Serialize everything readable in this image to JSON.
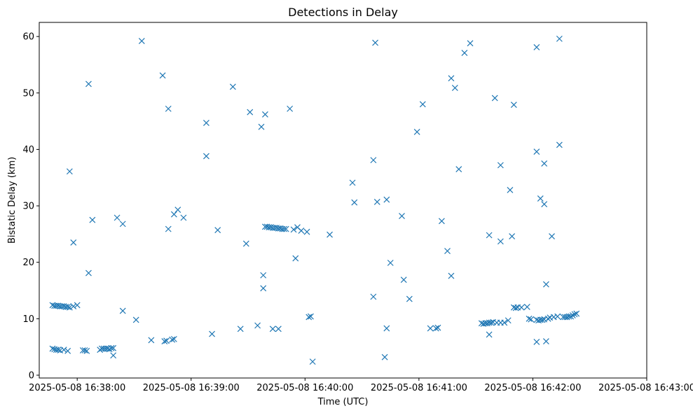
{
  "chart_data": {
    "type": "scatter",
    "title": "Detections in Delay",
    "xlabel": "Time (UTC)",
    "ylabel": "Bistatic Delay (km)",
    "x_unit": "time",
    "xlim": [
      "2025-05-08 16:37:40",
      "2025-05-08 16:43:00"
    ],
    "ylim": [
      -0.5,
      62.5
    ],
    "x_ticks": [
      {
        "t": "2025-05-08 16:38:00",
        "label": "2025-05-08 16:38:00"
      },
      {
        "t": "2025-05-08 16:39:00",
        "label": "2025-05-08 16:39:00"
      },
      {
        "t": "2025-05-08 16:40:00",
        "label": "2025-05-08 16:40:00"
      },
      {
        "t": "2025-05-08 16:41:00",
        "label": "2025-05-08 16:41:00"
      },
      {
        "t": "2025-05-08 16:42:00",
        "label": "2025-05-08 16:42:00"
      },
      {
        "t": "2025-05-08 16:43:00",
        "label": "2025-05-08 16:43:00"
      }
    ],
    "y_ticks": [
      0,
      10,
      20,
      30,
      40,
      50,
      60
    ],
    "grid": false,
    "legend": false,
    "marker": "x",
    "color": "#1f77b4",
    "series": [
      {
        "points": [
          [
            "2025-05-08 16:37:47",
            12.4
          ],
          [
            "2025-05-08 16:37:48",
            12.3
          ],
          [
            "2025-05-08 16:37:49",
            12.3
          ],
          [
            "2025-05-08 16:37:50",
            12.3
          ],
          [
            "2025-05-08 16:37:51",
            12.2
          ],
          [
            "2025-05-08 16:37:52",
            12.2
          ],
          [
            "2025-05-08 16:37:53",
            12.2
          ],
          [
            "2025-05-08 16:37:54",
            12.1
          ],
          [
            "2025-05-08 16:37:55",
            12.1
          ],
          [
            "2025-05-08 16:37:56",
            12.0
          ],
          [
            "2025-05-08 16:37:58",
            12.2
          ],
          [
            "2025-05-08 16:38:00",
            12.4
          ],
          [
            "2025-05-08 16:37:47",
            4.7
          ],
          [
            "2025-05-08 16:37:48",
            4.6
          ],
          [
            "2025-05-08 16:37:49",
            4.5
          ],
          [
            "2025-05-08 16:37:50",
            4.5
          ],
          [
            "2025-05-08 16:37:51",
            4.4
          ],
          [
            "2025-05-08 16:37:53",
            4.5
          ],
          [
            "2025-05-08 16:37:55",
            4.3
          ],
          [
            "2025-05-08 16:37:56",
            36.1
          ],
          [
            "2025-05-08 16:37:58",
            23.5
          ],
          [
            "2025-05-08 16:38:03",
            4.4
          ],
          [
            "2025-05-08 16:38:04",
            4.4
          ],
          [
            "2025-05-08 16:38:05",
            4.3
          ],
          [
            "2025-05-08 16:38:06",
            51.6
          ],
          [
            "2025-05-08 16:38:06",
            18.1
          ],
          [
            "2025-05-08 16:38:08",
            27.5
          ],
          [
            "2025-05-08 16:38:12",
            4.5
          ],
          [
            "2025-05-08 16:38:13",
            4.7
          ],
          [
            "2025-05-08 16:38:14",
            4.7
          ],
          [
            "2025-05-08 16:38:15",
            4.7
          ],
          [
            "2025-05-08 16:38:16",
            4.7
          ],
          [
            "2025-05-08 16:38:17",
            4.6
          ],
          [
            "2025-05-08 16:38:18",
            4.8
          ],
          [
            "2025-05-08 16:38:19",
            4.8
          ],
          [
            "2025-05-08 16:38:19",
            3.5
          ],
          [
            "2025-05-08 16:38:21",
            27.9
          ],
          [
            "2025-05-08 16:38:24",
            26.8
          ],
          [
            "2025-05-08 16:38:24",
            11.4
          ],
          [
            "2025-05-08 16:38:31",
            9.8
          ],
          [
            "2025-05-08 16:38:34",
            59.2
          ],
          [
            "2025-05-08 16:38:39",
            6.2
          ],
          [
            "2025-05-08 16:38:45",
            53.1
          ],
          [
            "2025-05-08 16:38:46",
            6.0
          ],
          [
            "2025-05-08 16:38:47",
            6.1
          ],
          [
            "2025-05-08 16:38:48",
            25.9
          ],
          [
            "2025-05-08 16:38:48",
            47.2
          ],
          [
            "2025-05-08 16:38:50",
            6.3
          ],
          [
            "2025-05-08 16:38:51",
            6.4
          ],
          [
            "2025-05-08 16:38:51",
            28.5
          ],
          [
            "2025-05-08 16:38:53",
            29.3
          ],
          [
            "2025-05-08 16:38:56",
            27.9
          ],
          [
            "2025-05-08 16:39:08",
            44.7
          ],
          [
            "2025-05-08 16:39:08",
            38.8
          ],
          [
            "2025-05-08 16:39:11",
            7.3
          ],
          [
            "2025-05-08 16:39:14",
            25.7
          ],
          [
            "2025-05-08 16:39:22",
            51.1
          ],
          [
            "2025-05-08 16:39:26",
            8.2
          ],
          [
            "2025-05-08 16:39:29",
            23.3
          ],
          [
            "2025-05-08 16:39:31",
            46.6
          ],
          [
            "2025-05-08 16:39:35",
            8.8
          ],
          [
            "2025-05-08 16:39:37",
            44.0
          ],
          [
            "2025-05-08 16:39:38",
            17.7
          ],
          [
            "2025-05-08 16:39:38",
            15.4
          ],
          [
            "2025-05-08 16:39:39",
            46.2
          ],
          [
            "2025-05-08 16:39:39",
            26.3
          ],
          [
            "2025-05-08 16:39:40",
            26.3
          ],
          [
            "2025-05-08 16:39:41",
            26.2
          ],
          [
            "2025-05-08 16:39:42",
            26.2
          ],
          [
            "2025-05-08 16:39:43",
            26.1
          ],
          [
            "2025-05-08 16:39:44",
            26.1
          ],
          [
            "2025-05-08 16:39:45",
            26.1
          ],
          [
            "2025-05-08 16:39:46",
            26.0
          ],
          [
            "2025-05-08 16:39:47",
            26.0
          ],
          [
            "2025-05-08 16:39:48",
            25.9
          ],
          [
            "2025-05-08 16:39:49",
            25.9
          ],
          [
            "2025-05-08 16:39:50",
            25.9
          ],
          [
            "2025-05-08 16:39:43",
            8.2
          ],
          [
            "2025-05-08 16:39:46",
            8.2
          ],
          [
            "2025-05-08 16:39:52",
            47.2
          ],
          [
            "2025-05-08 16:39:54",
            25.8
          ],
          [
            "2025-05-08 16:39:56",
            26.2
          ],
          [
            "2025-05-08 16:39:55",
            20.7
          ],
          [
            "2025-05-08 16:39:58",
            25.6
          ],
          [
            "2025-05-08 16:40:01",
            25.4
          ],
          [
            "2025-05-08 16:40:02",
            10.3
          ],
          [
            "2025-05-08 16:40:03",
            10.4
          ],
          [
            "2025-05-08 16:40:04",
            2.4
          ],
          [
            "2025-05-08 16:40:13",
            24.9
          ],
          [
            "2025-05-08 16:40:25",
            34.1
          ],
          [
            "2025-05-08 16:40:26",
            30.6
          ],
          [
            "2025-05-08 16:40:36",
            13.9
          ],
          [
            "2025-05-08 16:40:36",
            38.1
          ],
          [
            "2025-05-08 16:40:37",
            58.9
          ],
          [
            "2025-05-08 16:40:38",
            30.7
          ],
          [
            "2025-05-08 16:40:42",
            3.2
          ],
          [
            "2025-05-08 16:40:43",
            8.3
          ],
          [
            "2025-05-08 16:40:43",
            31.1
          ],
          [
            "2025-05-08 16:40:45",
            19.9
          ],
          [
            "2025-05-08 16:40:51",
            28.2
          ],
          [
            "2025-05-08 16:40:52",
            16.9
          ],
          [
            "2025-05-08 16:40:55",
            13.5
          ],
          [
            "2025-05-08 16:40:59",
            43.1
          ],
          [
            "2025-05-08 16:41:02",
            48.0
          ],
          [
            "2025-05-08 16:41:06",
            8.3
          ],
          [
            "2025-05-08 16:41:09",
            8.3
          ],
          [
            "2025-05-08 16:41:10",
            8.4
          ],
          [
            "2025-05-08 16:41:12",
            27.3
          ],
          [
            "2025-05-08 16:41:15",
            22.0
          ],
          [
            "2025-05-08 16:41:17",
            17.6
          ],
          [
            "2025-05-08 16:41:17",
            52.6
          ],
          [
            "2025-05-08 16:41:19",
            50.9
          ],
          [
            "2025-05-08 16:41:21",
            36.5
          ],
          [
            "2025-05-08 16:41:24",
            57.1
          ],
          [
            "2025-05-08 16:41:27",
            58.8
          ],
          [
            "2025-05-08 16:41:33",
            9.2
          ],
          [
            "2025-05-08 16:41:34",
            9.1
          ],
          [
            "2025-05-08 16:41:35",
            9.2
          ],
          [
            "2025-05-08 16:41:36",
            9.2
          ],
          [
            "2025-05-08 16:41:37",
            9.3
          ],
          [
            "2025-05-08 16:41:38",
            9.3
          ],
          [
            "2025-05-08 16:41:39",
            9.4
          ],
          [
            "2025-05-08 16:41:41",
            9.3
          ],
          [
            "2025-05-08 16:41:43",
            9.3
          ],
          [
            "2025-05-08 16:41:45",
            9.3
          ],
          [
            "2025-05-08 16:41:47",
            9.7
          ],
          [
            "2025-05-08 16:41:37",
            24.8
          ],
          [
            "2025-05-08 16:41:37",
            7.2
          ],
          [
            "2025-05-08 16:41:40",
            49.1
          ],
          [
            "2025-05-08 16:41:43",
            37.2
          ],
          [
            "2025-05-08 16:41:43",
            23.7
          ],
          [
            "2025-05-08 16:41:48",
            32.8
          ],
          [
            "2025-05-08 16:41:49",
            24.6
          ],
          [
            "2025-05-08 16:41:50",
            47.9
          ],
          [
            "2025-05-08 16:41:50",
            12.0
          ],
          [
            "2025-05-08 16:41:51",
            11.9
          ],
          [
            "2025-05-08 16:41:52",
            12.0
          ],
          [
            "2025-05-08 16:41:54",
            12.0
          ],
          [
            "2025-05-08 16:41:57",
            12.1
          ],
          [
            "2025-05-08 16:41:58",
            10.0
          ],
          [
            "2025-05-08 16:41:59",
            9.9
          ],
          [
            "2025-05-08 16:42:02",
            9.8
          ],
          [
            "2025-05-08 16:42:03",
            9.7
          ],
          [
            "2025-05-08 16:42:04",
            9.8
          ],
          [
            "2025-05-08 16:42:05",
            9.8
          ],
          [
            "2025-05-08 16:42:06",
            9.9
          ],
          [
            "2025-05-08 16:42:08",
            10.0
          ],
          [
            "2025-05-08 16:42:09",
            10.2
          ],
          [
            "2025-05-08 16:42:11",
            10.3
          ],
          [
            "2025-05-08 16:42:13",
            10.4
          ],
          [
            "2025-05-08 16:42:02",
            58.1
          ],
          [
            "2025-05-08 16:42:02",
            39.6
          ],
          [
            "2025-05-08 16:42:02",
            5.9
          ],
          [
            "2025-05-08 16:42:04",
            31.3
          ],
          [
            "2025-05-08 16:42:06",
            30.3
          ],
          [
            "2025-05-08 16:42:06",
            37.5
          ],
          [
            "2025-05-08 16:42:07",
            16.1
          ],
          [
            "2025-05-08 16:42:07",
            6.0
          ],
          [
            "2025-05-08 16:42:10",
            24.6
          ],
          [
            "2025-05-08 16:42:14",
            59.6
          ],
          [
            "2025-05-08 16:42:14",
            40.8
          ],
          [
            "2025-05-08 16:42:16",
            10.3
          ],
          [
            "2025-05-08 16:42:17",
            10.3
          ],
          [
            "2025-05-08 16:42:18",
            10.3
          ],
          [
            "2025-05-08 16:42:19",
            10.4
          ],
          [
            "2025-05-08 16:42:20",
            10.4
          ],
          [
            "2025-05-08 16:42:21",
            10.6
          ],
          [
            "2025-05-08 16:42:22",
            10.8
          ],
          [
            "2025-05-08 16:42:23",
            10.9
          ]
        ]
      }
    ]
  }
}
